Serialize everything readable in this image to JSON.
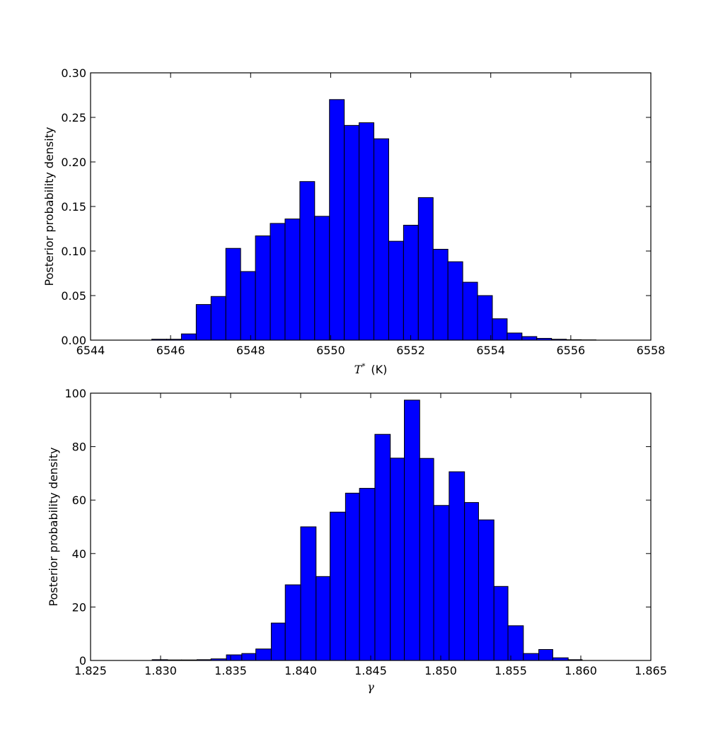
{
  "figure": {
    "background": "#ffffff",
    "bar_color": "#0000ff",
    "edge_color": "#000000"
  },
  "chart_data": [
    {
      "type": "bar",
      "subtype": "histogram",
      "xlabel": "T* (K)",
      "xlabel_parts": {
        "symbol": "T",
        "sup": "*",
        "unit": "(K)"
      },
      "ylabel": "Posterior probability density",
      "xlim": [
        6544,
        6558
      ],
      "ylim": [
        0,
        0.3
      ],
      "xticks": [
        6544,
        6546,
        6548,
        6550,
        6552,
        6554,
        6556,
        6558
      ],
      "xtick_labels": [
        "6544",
        "6546",
        "6548",
        "6550",
        "6552",
        "6554",
        "6556",
        "6558"
      ],
      "yticks": [
        0,
        0.05,
        0.1,
        0.15,
        0.2,
        0.25,
        0.3
      ],
      "ytick_labels": [
        "0.00",
        "0.05",
        "0.10",
        "0.15",
        "0.20",
        "0.25",
        "0.30"
      ],
      "grid": false,
      "legend": "none",
      "bin_edges": [
        6545.53,
        6545.9,
        6546.27,
        6546.64,
        6547.01,
        6547.38,
        6547.75,
        6548.12,
        6548.49,
        6548.86,
        6549.23,
        6549.6,
        6549.97,
        6550.34,
        6550.71,
        6551.08,
        6551.45,
        6551.82,
        6552.19,
        6552.56,
        6552.93,
        6553.3,
        6553.67,
        6554.04,
        6554.41,
        6554.78,
        6555.15,
        6555.52,
        6555.89,
        6556.26,
        6556.63
      ],
      "values": [
        0.001,
        0.001,
        0.007,
        0.04,
        0.049,
        0.103,
        0.077,
        0.117,
        0.131,
        0.136,
        0.178,
        0.139,
        0.27,
        0.241,
        0.244,
        0.226,
        0.111,
        0.129,
        0.16,
        0.102,
        0.088,
        0.065,
        0.05,
        0.024,
        0.008,
        0.004,
        0.002,
        0.001,
        0.0005,
        0.0003
      ]
    },
    {
      "type": "bar",
      "subtype": "histogram",
      "xlabel": "γ",
      "ylabel": "Posterior probability density",
      "xlim": [
        1.825,
        1.865
      ],
      "ylim": [
        0,
        100
      ],
      "xticks": [
        1.825,
        1.83,
        1.835,
        1.84,
        1.845,
        1.85,
        1.855,
        1.86,
        1.865
      ],
      "xtick_labels": [
        "1.825",
        "1.830",
        "1.835",
        "1.840",
        "1.845",
        "1.850",
        "1.855",
        "1.860",
        "1.865"
      ],
      "yticks": [
        0,
        20,
        40,
        60,
        80,
        100
      ],
      "ytick_labels": [
        "0",
        "20",
        "40",
        "60",
        "80",
        "100"
      ],
      "grid": false,
      "legend": "none",
      "bin_edges": [
        1.8294,
        1.8305,
        1.8315,
        1.8326,
        1.8336,
        1.8347,
        1.8358,
        1.8368,
        1.8379,
        1.8389,
        1.84,
        1.8411,
        1.8421,
        1.8432,
        1.8442,
        1.8453,
        1.8464,
        1.8474,
        1.8485,
        1.8495,
        1.8506,
        1.8517,
        1.8527,
        1.8538,
        1.8548,
        1.8559,
        1.857,
        1.858,
        1.8591,
        1.8601,
        1.8612
      ],
      "values": [
        0.3,
        0.2,
        0.2,
        0.3,
        0.6,
        2.1,
        2.6,
        4.3,
        14.0,
        28.3,
        50.0,
        31.4,
        55.5,
        62.6,
        64.4,
        84.6,
        75.7,
        97.4,
        75.6,
        58.0,
        70.6,
        59.1,
        52.6,
        27.7,
        13.0,
        2.6,
        4.1,
        1.0,
        0.3,
        0.0
      ]
    }
  ]
}
